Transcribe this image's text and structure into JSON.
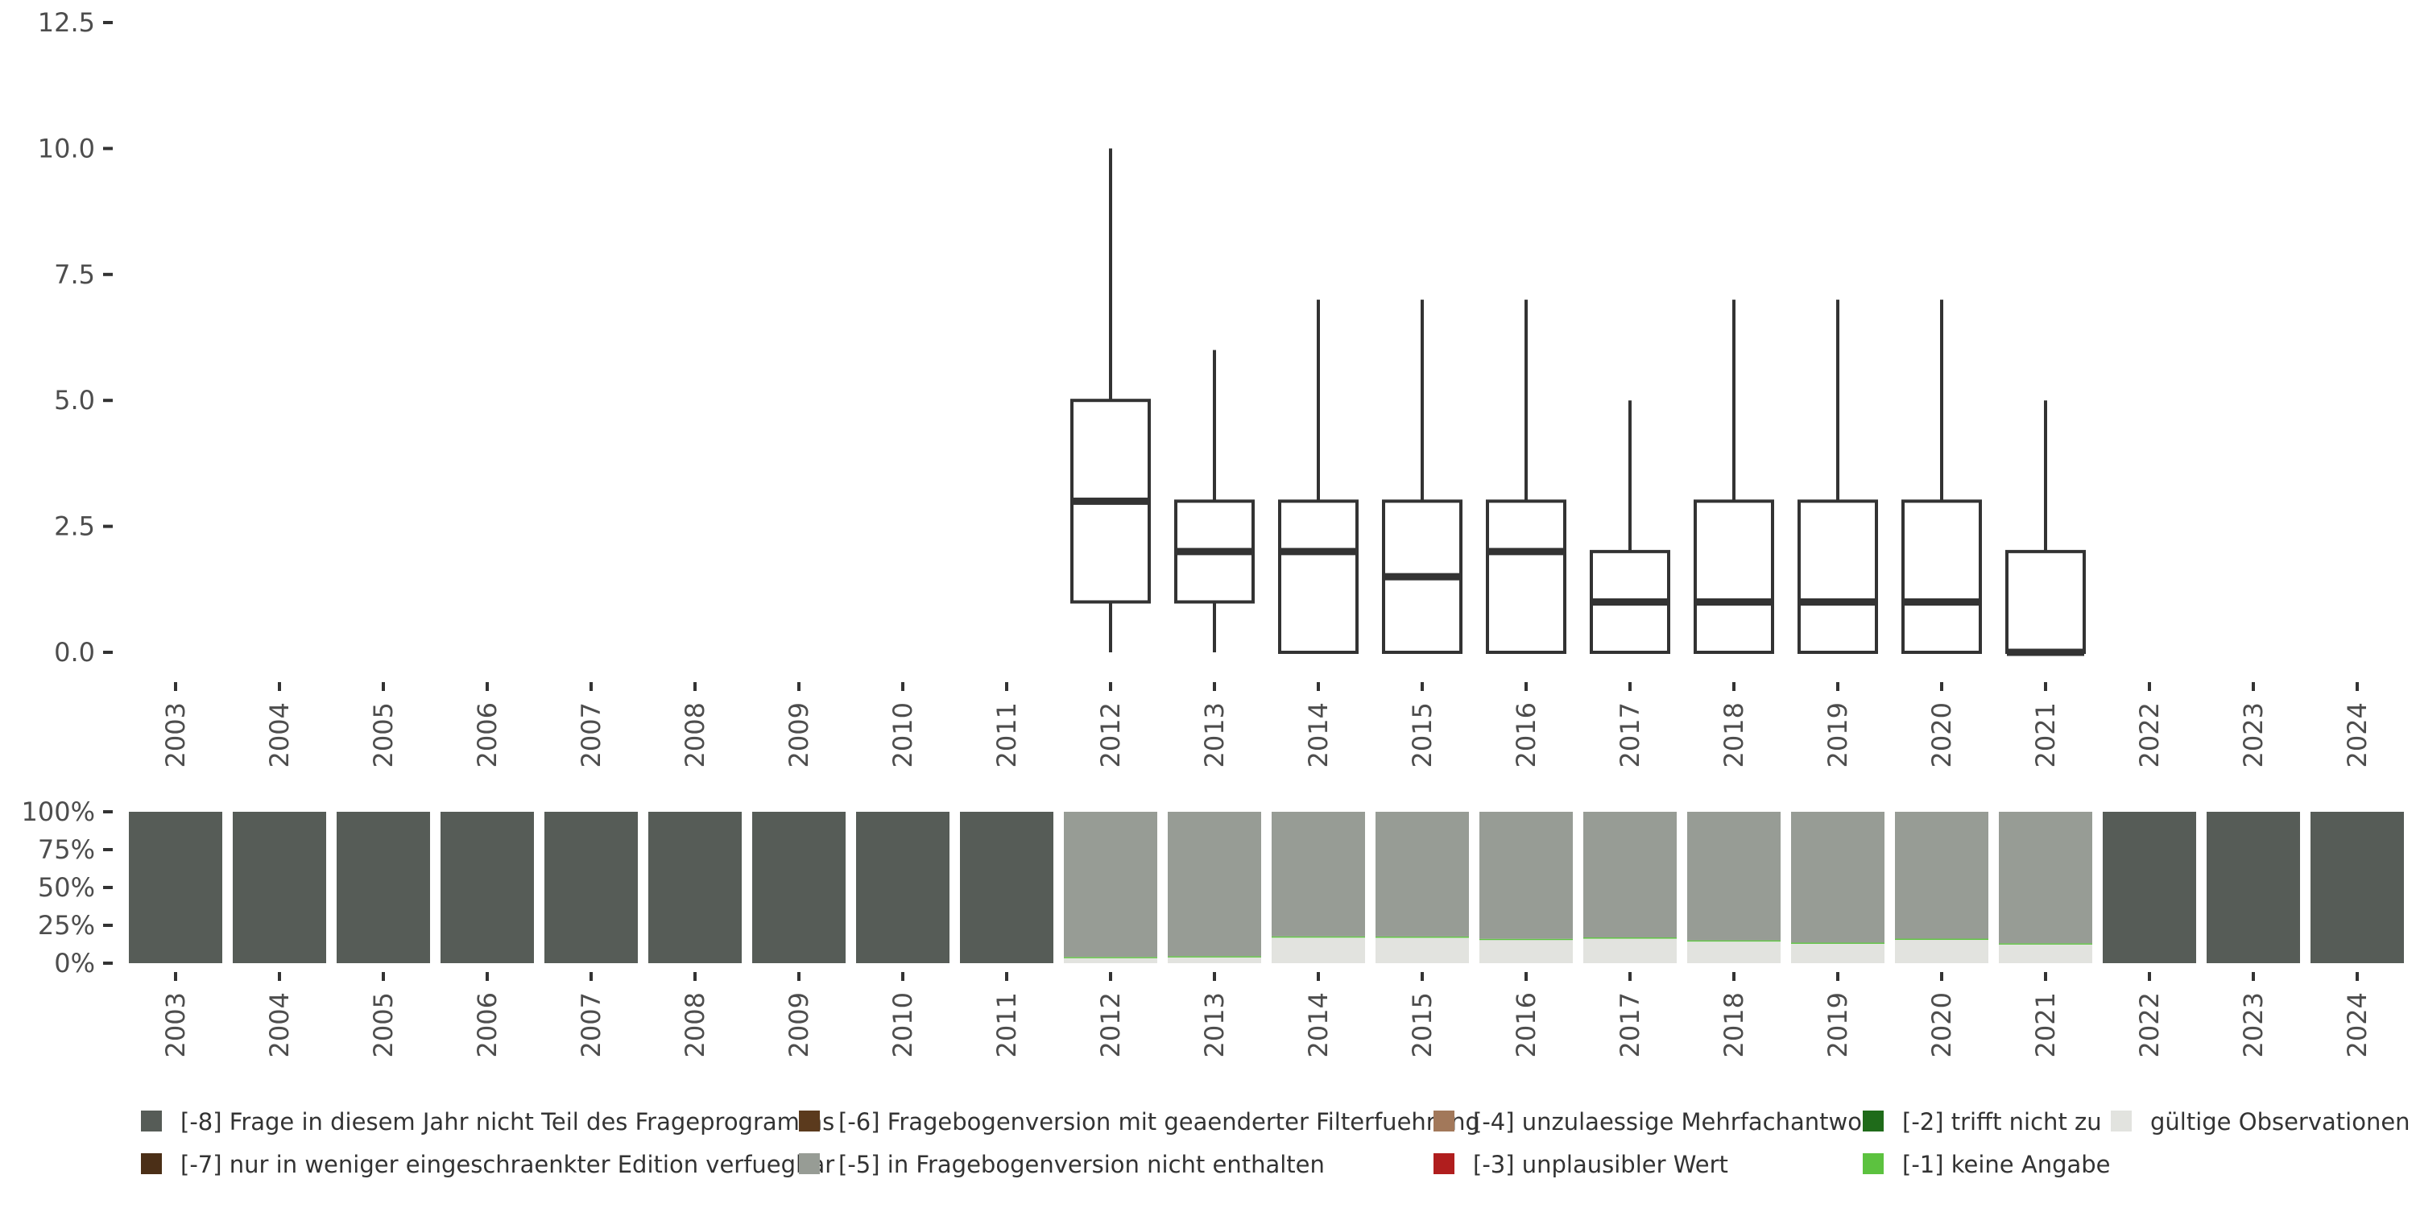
{
  "chart_data": [
    {
      "type": "boxplot",
      "title": "",
      "xlabel": "",
      "ylabel": "",
      "ylim": [
        0,
        12.5
      ],
      "y_ticks": [
        "0.0",
        "2.5",
        "5.0",
        "7.5",
        "10.0",
        "12.5"
      ],
      "y_tick_values": [
        0,
        2.5,
        5,
        7.5,
        10,
        12.5
      ],
      "categories": [
        "2003",
        "2004",
        "2005",
        "2006",
        "2007",
        "2008",
        "2009",
        "2010",
        "2011",
        "2012",
        "2013",
        "2014",
        "2015",
        "2016",
        "2017",
        "2018",
        "2019",
        "2020",
        "2021",
        "2022",
        "2023",
        "2024"
      ],
      "boxes": [
        {
          "year": "2012",
          "min": 0,
          "q1": 1,
          "median": 3,
          "q3": 5,
          "max": 10
        },
        {
          "year": "2013",
          "min": 0,
          "q1": 1,
          "median": 2,
          "q3": 3,
          "max": 6
        },
        {
          "year": "2014",
          "min": 0,
          "q1": 0,
          "median": 2,
          "q3": 3,
          "max": 7
        },
        {
          "year": "2015",
          "min": 0,
          "q1": 0,
          "median": 1.5,
          "q3": 3,
          "max": 7
        },
        {
          "year": "2016",
          "min": 0,
          "q1": 0,
          "median": 2,
          "q3": 3,
          "max": 7
        },
        {
          "year": "2017",
          "min": 0,
          "q1": 0,
          "median": 1,
          "q3": 2,
          "max": 5
        },
        {
          "year": "2018",
          "min": 0,
          "q1": 0,
          "median": 1,
          "q3": 3,
          "max": 7
        },
        {
          "year": "2019",
          "min": 0,
          "q1": 0,
          "median": 1,
          "q3": 3,
          "max": 7
        },
        {
          "year": "2020",
          "min": 0,
          "q1": 0,
          "median": 1,
          "q3": 3,
          "max": 7
        },
        {
          "year": "2021",
          "min": 0,
          "q1": 0,
          "median": 0,
          "q3": 2,
          "max": 5
        }
      ],
      "colors": {
        "box_stroke": "#333333"
      }
    },
    {
      "type": "stacked_bar",
      "title": "",
      "ylim": [
        0,
        100
      ],
      "y_ticks": [
        "0%",
        "25%",
        "50%",
        "75%",
        "100%"
      ],
      "y_tick_values": [
        0,
        25,
        50,
        75,
        100
      ],
      "categories": [
        "2003",
        "2004",
        "2005",
        "2006",
        "2007",
        "2008",
        "2009",
        "2010",
        "2011",
        "2012",
        "2013",
        "2014",
        "2015",
        "2016",
        "2017",
        "2018",
        "2019",
        "2020",
        "2021",
        "2022",
        "2023",
        "2024"
      ],
      "series": [
        {
          "name": "gültige Observationen",
          "color": "#e2e3df",
          "values": [
            0,
            0,
            0,
            0,
            0,
            0,
            0,
            0,
            0,
            3.5,
            4,
            17,
            17,
            15.5,
            16.5,
            14.5,
            13,
            15.5,
            12.5,
            0,
            0,
            0
          ]
        },
        {
          "name": "[-1] keine Angabe",
          "color": "#5cc23f",
          "values": [
            0,
            0,
            0,
            0,
            0,
            0,
            0,
            0,
            0,
            0.6,
            0.6,
            0.7,
            0.6,
            0.6,
            0.5,
            0.6,
            0.6,
            0.7,
            0.6,
            0,
            0,
            0
          ]
        },
        {
          "name": "[-5] in Fragebogenversion nicht enthalten",
          "color": "#979c95",
          "values": [
            0,
            0,
            0,
            0,
            0,
            0,
            0,
            0,
            0,
            95.9,
            95.4,
            82.3,
            82.4,
            83.9,
            83,
            84.9,
            86.4,
            83.8,
            86.9,
            0,
            0,
            0
          ]
        },
        {
          "name": "[-8] Frage in diesem Jahr nicht Teil des Frageprogramms",
          "color": "#565c57",
          "values": [
            100,
            100,
            100,
            100,
            100,
            100,
            100,
            100,
            100,
            0,
            0,
            0,
            0,
            0,
            0,
            0,
            0,
            0,
            0,
            100,
            100,
            100
          ]
        }
      ]
    }
  ],
  "legend": [
    {
      "label": "[-8] Frage in diesem Jahr nicht Teil des Frageprogramms",
      "color": "#565c57"
    },
    {
      "label": "[-7] nur in weniger eingeschraenkter Edition verfuegbar",
      "color": "#4b2f17"
    },
    {
      "label": "[-6] Fragebogenversion mit geaenderter Filterfuehrung",
      "color": "#5b3a1d"
    },
    {
      "label": "[-5] in Fragebogenversion nicht enthalten",
      "color": "#979c95"
    },
    {
      "label": "[-4] unzulaessige Mehrfachantwort",
      "color": "#a2785a"
    },
    {
      "label": "[-3] unplausibler Wert",
      "color": "#b01e1e"
    },
    {
      "label": "[-2] trifft nicht zu",
      "color": "#1f6b1a"
    },
    {
      "label": "[-1] keine Angabe",
      "color": "#5cc23f"
    },
    {
      "label": "gültige Observationen",
      "color": "#e2e3df"
    }
  ]
}
